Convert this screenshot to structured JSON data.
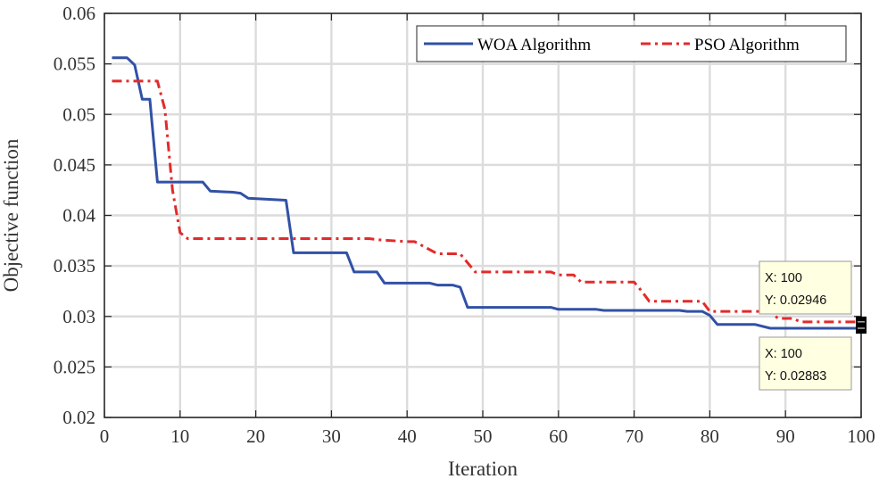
{
  "chart_data": {
    "type": "line",
    "title": "",
    "xlabel": "Iteration",
    "ylabel": "Objective function",
    "xlim": [
      0,
      100
    ],
    "ylim": [
      0.02,
      0.06
    ],
    "x_ticks": [
      "0",
      "10",
      "20",
      "30",
      "40",
      "50",
      "60",
      "70",
      "80",
      "90",
      "100"
    ],
    "y_ticks": [
      "0.02",
      "0.025",
      "0.03",
      "0.035",
      "0.04",
      "0.045",
      "0.05",
      "0.055",
      "0.06"
    ],
    "grid": true,
    "legend_position": "top-right",
    "series": [
      {
        "name": "WOA Algorithm",
        "color": "#3151a6",
        "style": "solid",
        "x": [
          1,
          3,
          4,
          5,
          6,
          7,
          8,
          13,
          14,
          17,
          18,
          19,
          24,
          25,
          32,
          33,
          36,
          37,
          43,
          44,
          46,
          47,
          48,
          59,
          60,
          65,
          66,
          76,
          77,
          79,
          80,
          81,
          86,
          88,
          100
        ],
        "y": [
          0.0556,
          0.0556,
          0.0549,
          0.0515,
          0.0515,
          0.0433,
          0.0433,
          0.0433,
          0.0424,
          0.0423,
          0.0422,
          0.0417,
          0.0415,
          0.0363,
          0.0363,
          0.0344,
          0.0344,
          0.0333,
          0.0333,
          0.0331,
          0.0331,
          0.0329,
          0.0309,
          0.0309,
          0.0307,
          0.0307,
          0.0306,
          0.0306,
          0.0305,
          0.0305,
          0.0301,
          0.0292,
          0.0292,
          0.02883,
          0.02883
        ]
      },
      {
        "name": "PSO Algorithm",
        "color": "#e32a2a",
        "style": "dashdot",
        "x": [
          1,
          7,
          8,
          9,
          10,
          11,
          35,
          36,
          40,
          41,
          44,
          47,
          49,
          59,
          60,
          62,
          63,
          70,
          71,
          72,
          79,
          80,
          88,
          89,
          91,
          92,
          100
        ],
        "y": [
          0.0533,
          0.0533,
          0.0505,
          0.0425,
          0.0383,
          0.0377,
          0.0377,
          0.0376,
          0.0374,
          0.0374,
          0.0362,
          0.0362,
          0.0344,
          0.0344,
          0.0341,
          0.0341,
          0.0334,
          0.0334,
          0.0325,
          0.0315,
          0.0315,
          0.0305,
          0.0305,
          0.0298,
          0.0298,
          0.02946,
          0.02946
        ]
      }
    ],
    "annotations": [
      {
        "x_label": "X: 100",
        "y_label": "Y: 0.02946",
        "x": 100,
        "y": 0.02946,
        "placement": "above"
      },
      {
        "x_label": "X: 100",
        "y_label": "Y: 0.02883",
        "x": 100,
        "y": 0.02883,
        "placement": "below"
      }
    ]
  }
}
